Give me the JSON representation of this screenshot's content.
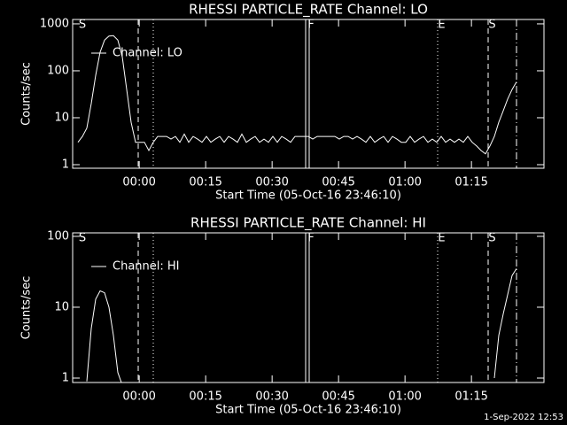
{
  "chart_data": [
    {
      "type": "line",
      "title": "RHESSI PARTICLE_RATE Channel: LO",
      "xlabel": "Start Time (05-Oct-16 23:46:10)",
      "ylabel": "Counts/sec",
      "log_y": true,
      "color": "#ffffff",
      "legend": "upper left",
      "xlim": [
        -1.2,
        105.2
      ],
      "ylim": [
        0.84,
        1240
      ],
      "xticks": [
        {
          "value": 13.83,
          "label": "00:00"
        },
        {
          "value": 28.83,
          "label": "00:15"
        },
        {
          "value": 43.83,
          "label": "00:30"
        },
        {
          "value": 58.83,
          "label": "00:45"
        },
        {
          "value": 73.83,
          "label": "01:00"
        },
        {
          "value": 88.83,
          "label": "01:15"
        }
      ],
      "yticks": [
        1,
        10,
        100,
        1000
      ],
      "vlines": [
        {
          "x": 13.6,
          "style": "dashed"
        },
        {
          "x": 17.0,
          "style": "dotted"
        },
        {
          "x": 51.4,
          "style": "solid"
        },
        {
          "x": 52.2,
          "style": "solid"
        },
        {
          "x": 81.2,
          "style": "dotted"
        },
        {
          "x": 92.6,
          "style": "dashed"
        },
        {
          "x": 99.0,
          "style": "dashdot"
        }
      ],
      "flags": [
        {
          "label": "S",
          "x": 0.4
        },
        {
          "label": "F",
          "x": 52.0
        },
        {
          "label": "E",
          "x": 81.5
        },
        {
          "label": "S",
          "x": 92.9
        }
      ],
      "x": [
        0,
        1,
        2,
        3,
        4,
        5,
        6,
        7,
        8,
        9,
        10,
        11,
        12,
        13,
        14,
        15,
        16,
        17,
        18,
        19,
        20,
        21,
        22,
        23,
        24,
        25,
        26,
        27,
        28,
        29,
        30,
        31,
        32,
        33,
        34,
        35,
        36,
        37,
        38,
        39,
        40,
        41,
        42,
        43,
        44,
        45,
        46,
        47,
        48,
        49,
        50,
        51,
        52,
        53,
        54,
        55,
        56,
        57,
        58,
        59,
        60,
        61,
        62,
        63,
        64,
        65,
        66,
        67,
        68,
        69,
        70,
        71,
        72,
        73,
        74,
        75,
        76,
        77,
        78,
        79,
        80,
        81,
        82,
        83,
        84,
        85,
        86,
        87,
        88,
        89,
        90,
        91,
        92,
        93,
        94,
        95,
        96,
        97,
        98,
        99
      ],
      "series": [
        {
          "name": "Channel: LO",
          "values": [
            3,
            4,
            6,
            20,
            80,
            250,
            450,
            550,
            560,
            450,
            200,
            40,
            8,
            3,
            3,
            3,
            2,
            3,
            4,
            4,
            4,
            3.5,
            4,
            3,
            4.5,
            3,
            4,
            3.5,
            3,
            4,
            3,
            3.5,
            4,
            3,
            4,
            3.5,
            3,
            4.5,
            3,
            3.5,
            4,
            3,
            3.5,
            3,
            4,
            3,
            4,
            3.5,
            3,
            4,
            4,
            4,
            4,
            3.5,
            4,
            4,
            4,
            4,
            4,
            3.5,
            4,
            4,
            3.5,
            4,
            3.5,
            3,
            4,
            3,
            3.5,
            4,
            3,
            4,
            3.5,
            3,
            3,
            4,
            3,
            3.5,
            4,
            3,
            3.5,
            3,
            4,
            3,
            3.5,
            3,
            3.5,
            3,
            4,
            3,
            2.5,
            2,
            1.7,
            2.5,
            4,
            8,
            14,
            25,
            40,
            58
          ]
        }
      ]
    },
    {
      "type": "line",
      "title": "RHESSI PARTICLE_RATE Channel: HI",
      "xlabel": "Start Time (05-Oct-16 23:46:10)",
      "ylabel": "Counts/sec",
      "log_y": true,
      "color": "#ffffff",
      "legend": "upper left",
      "xlim": [
        -1.2,
        105.2
      ],
      "ylim": [
        0.866,
        112
      ],
      "xticks": [
        {
          "value": 13.83,
          "label": "00:00"
        },
        {
          "value": 28.83,
          "label": "00:15"
        },
        {
          "value": 43.83,
          "label": "00:30"
        },
        {
          "value": 58.83,
          "label": "00:45"
        },
        {
          "value": 73.83,
          "label": "01:00"
        },
        {
          "value": 88.83,
          "label": "01:15"
        }
      ],
      "yticks": [
        1,
        10,
        100
      ],
      "vlines": [
        {
          "x": 13.6,
          "style": "dashed"
        },
        {
          "x": 17.0,
          "style": "dotted"
        },
        {
          "x": 51.4,
          "style": "solid"
        },
        {
          "x": 52.2,
          "style": "solid"
        },
        {
          "x": 81.2,
          "style": "dotted"
        },
        {
          "x": 92.6,
          "style": "dashed"
        },
        {
          "x": 99.0,
          "style": "dashdot"
        }
      ],
      "flags": [
        {
          "label": "S",
          "x": 0.4
        },
        {
          "label": "F",
          "x": 52.0
        },
        {
          "label": "E",
          "x": 81.5
        },
        {
          "label": "S",
          "x": 92.9
        }
      ],
      "x": [
        0,
        1,
        2,
        3,
        4,
        5,
        6,
        7,
        8,
        9,
        10,
        11,
        12,
        13,
        14,
        15,
        16,
        17,
        18,
        19,
        20,
        21,
        22,
        23,
        24,
        25,
        26,
        27,
        28,
        29,
        30,
        31,
        32,
        33,
        34,
        35,
        36,
        37,
        38,
        39,
        40,
        41,
        42,
        43,
        44,
        45,
        46,
        47,
        48,
        49,
        50,
        51,
        52,
        53,
        54,
        55,
        56,
        57,
        58,
        59,
        60,
        61,
        62,
        63,
        64,
        65,
        66,
        67,
        68,
        69,
        70,
        71,
        72,
        73,
        74,
        75,
        76,
        77,
        78,
        79,
        80,
        81,
        82,
        83,
        84,
        85,
        86,
        87,
        88,
        89,
        90,
        91,
        92,
        93,
        94,
        95,
        96,
        97,
        98,
        99
      ],
      "series": [
        {
          "name": "Channel: HI",
          "values": [
            null,
            null,
            0.9,
            5,
            13,
            17,
            16,
            10,
            4,
            1.2,
            0.8,
            null,
            null,
            null,
            null,
            null,
            null,
            null,
            null,
            null,
            null,
            null,
            null,
            null,
            null,
            null,
            null,
            null,
            null,
            null,
            null,
            null,
            null,
            null,
            null,
            null,
            null,
            null,
            null,
            null,
            null,
            null,
            null,
            null,
            null,
            null,
            null,
            null,
            null,
            null,
            null,
            null,
            null,
            null,
            null,
            null,
            null,
            null,
            null,
            null,
            null,
            null,
            null,
            null,
            null,
            null,
            null,
            null,
            null,
            null,
            null,
            null,
            null,
            null,
            null,
            null,
            null,
            null,
            null,
            null,
            null,
            null,
            null,
            null,
            null,
            null,
            null,
            null,
            null,
            null,
            null,
            null,
            null,
            null,
            1,
            4,
            8,
            15,
            28,
            35
          ]
        }
      ]
    }
  ],
  "footer": "1-Sep-2022 12:53"
}
